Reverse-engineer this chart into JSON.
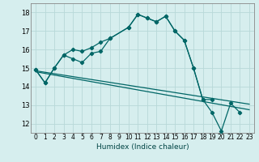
{
  "background_color": "#d6eeee",
  "grid_color": "#b8d8d8",
  "line_color": "#006666",
  "xlabel": "Humidex (Indice chaleur)",
  "xlim": [
    -0.5,
    23.5
  ],
  "ylim": [
    11.5,
    18.5
  ],
  "yticks": [
    12,
    13,
    14,
    15,
    16,
    17,
    18
  ],
  "xticks": [
    0,
    1,
    2,
    3,
    4,
    5,
    6,
    7,
    8,
    9,
    10,
    11,
    12,
    13,
    14,
    15,
    16,
    17,
    18,
    19,
    20,
    21,
    22,
    23
  ],
  "line1_x": [
    0,
    1,
    2,
    3,
    4,
    5,
    6,
    7,
    8,
    10,
    11,
    12,
    13,
    14,
    15,
    16,
    17,
    18,
    19
  ],
  "line1_y": [
    14.9,
    14.2,
    15.0,
    15.7,
    16.0,
    15.9,
    16.1,
    16.4,
    16.6,
    17.2,
    17.9,
    17.7,
    17.5,
    17.8,
    17.0,
    16.5,
    15.0,
    13.3,
    13.3
  ],
  "line2_x": [
    0,
    1,
    2,
    3,
    4,
    5,
    6,
    7,
    8,
    10,
    11,
    12,
    13,
    14,
    15,
    16,
    17,
    18,
    19,
    20,
    21,
    22
  ],
  "line2_y": [
    14.9,
    14.2,
    15.0,
    15.7,
    15.5,
    15.3,
    15.8,
    15.9,
    16.6,
    17.2,
    17.9,
    17.7,
    17.5,
    17.8,
    17.0,
    16.5,
    15.0,
    13.3,
    12.6,
    11.6,
    13.1,
    12.6
  ],
  "line3_x": [
    0,
    23
  ],
  "line3_y": [
    14.85,
    13.05
  ],
  "line4_x": [
    0,
    23
  ],
  "line4_y": [
    14.8,
    12.75
  ]
}
